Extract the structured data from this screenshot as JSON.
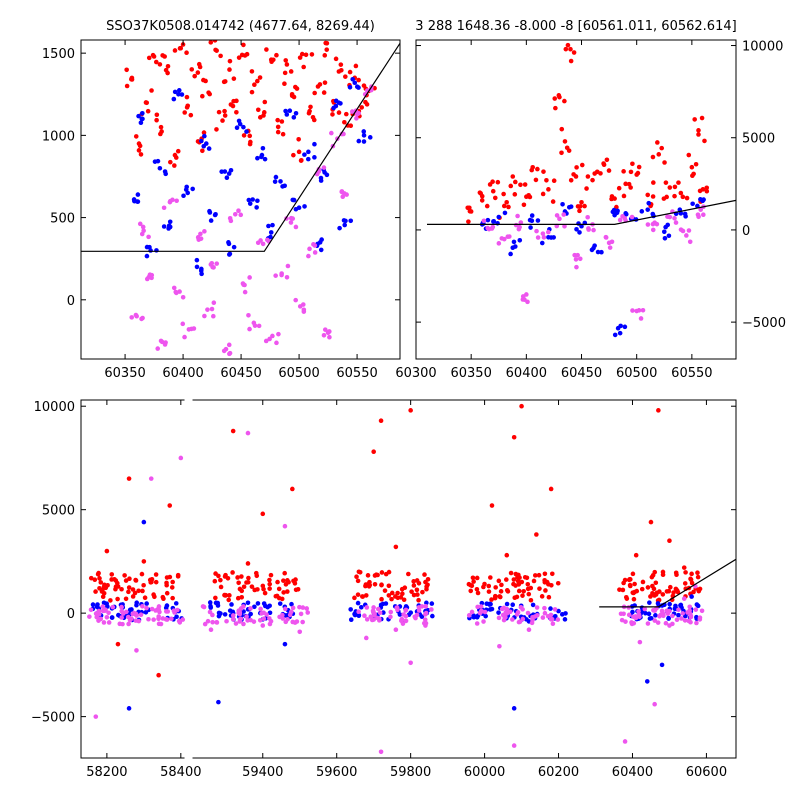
{
  "chart_data": [
    {
      "type": "scatter",
      "title": "SSO37K0508.014742 (4677.64, 8269.44)",
      "xlim": [
        60312,
        60587
      ],
      "ylim": [
        -360,
        1580
      ],
      "xticks": [
        60350,
        60400,
        60450,
        60500,
        60550
      ],
      "yticks": [
        0,
        500,
        1000,
        1500
      ],
      "grid": false,
      "series": [
        {
          "color": "#ff0000",
          "values": [
            [
              60356,
              1340
            ],
            [
              60362,
              950
            ],
            [
              60368,
              1200
            ],
            [
              60375,
              1480
            ],
            [
              60381,
              1050
            ],
            [
              60387,
              1420
            ],
            [
              60393,
              880
            ],
            [
              60398,
              1530
            ],
            [
              60404,
              1180
            ],
            [
              60410,
              1360
            ],
            [
              60416,
              980
            ],
            [
              60422,
              1260
            ],
            [
              60428,
              1520
            ],
            [
              60434,
              1090
            ],
            [
              60440,
              1400
            ],
            [
              60446,
              1210
            ],
            [
              60452,
              1550
            ],
            [
              60458,
              960
            ],
            [
              60464,
              1330
            ],
            [
              60470,
              1140
            ],
            [
              60476,
              1460
            ],
            [
              60482,
              1020
            ],
            [
              60488,
              1380
            ],
            [
              60494,
              1250
            ],
            [
              60500,
              900
            ],
            [
              60506,
              1490
            ],
            [
              60512,
              1110
            ],
            [
              60518,
              1310
            ],
            [
              60524,
              1560
            ],
            [
              60530,
              1200
            ],
            [
              60536,
              1430
            ],
            [
              60542,
              1060
            ],
            [
              60548,
              1350
            ],
            [
              60554,
              1170
            ],
            [
              60560,
              1270
            ]
          ]
        },
        {
          "color": "#0000ff",
          "values": [
            [
              60358,
              600
            ],
            [
              60365,
              1100
            ],
            [
              60372,
              300
            ],
            [
              60380,
              800
            ],
            [
              60388,
              450
            ],
            [
              60396,
              1250
            ],
            [
              60404,
              650
            ],
            [
              60412,
              200
            ],
            [
              60420,
              950
            ],
            [
              60428,
              520
            ],
            [
              60436,
              780
            ],
            [
              60444,
              320
            ],
            [
              60452,
              1050
            ],
            [
              60460,
              610
            ],
            [
              60468,
              880
            ],
            [
              60476,
              410
            ],
            [
              60484,
              720
            ],
            [
              60492,
              1150
            ],
            [
              60500,
              560
            ],
            [
              60508,
              900
            ],
            [
              60516,
              340
            ],
            [
              60524,
              760
            ],
            [
              60532,
              1210
            ],
            [
              60540,
              480
            ],
            [
              60548,
              1320
            ],
            [
              60556,
              1000
            ]
          ]
        },
        {
          "color": "#ee55ee",
          "values": [
            [
              60360,
              -100
            ],
            [
              60366,
              420
            ],
            [
              60373,
              150
            ],
            [
              60381,
              -250
            ],
            [
              60389,
              600
            ],
            [
              60397,
              50
            ],
            [
              60405,
              -180
            ],
            [
              60413,
              380
            ],
            [
              60421,
              -60
            ],
            [
              60429,
              220
            ],
            [
              60437,
              -300
            ],
            [
              60445,
              520
            ],
            [
              60453,
              90
            ],
            [
              60461,
              -140
            ],
            [
              60469,
              340
            ],
            [
              60477,
              -220
            ],
            [
              60485,
              160
            ],
            [
              60493,
              470
            ],
            [
              60501,
              -40
            ],
            [
              60509,
              310
            ],
            [
              60517,
              780
            ],
            [
              60525,
              -200
            ],
            [
              60533,
              980
            ],
            [
              60541,
              640
            ],
            [
              60549,
              1150
            ],
            [
              60557,
              1250
            ]
          ]
        }
      ],
      "model_line": [
        [
          60312,
          295
        ],
        [
          60470,
          295
        ],
        [
          60587,
          1560
        ]
      ]
    },
    {
      "type": "scatter",
      "title": "3 288 1648.36 -8.000 -8 [60561.011, 60562.614]",
      "xlim": [
        60300,
        60590
      ],
      "ylim": [
        -7000,
        10300
      ],
      "xticks": [
        60300,
        60350,
        60400,
        60450,
        60500,
        60550
      ],
      "yticks": [
        -5000,
        0,
        5000,
        10000
      ],
      "y_axis_side": "right",
      "grid": false,
      "series": [
        {
          "color": "#ff0000",
          "values": [
            [
              60350,
              1000
            ],
            [
              60360,
              1600
            ],
            [
              60370,
              2100
            ],
            [
              60380,
              1300
            ],
            [
              60390,
              2600
            ],
            [
              60400,
              1800
            ],
            [
              60410,
              3300
            ],
            [
              60420,
              2200
            ],
            [
              60430,
              7200
            ],
            [
              60435,
              4800
            ],
            [
              60440,
              9800
            ],
            [
              60445,
              2900
            ],
            [
              60450,
              1500
            ],
            [
              60460,
              2700
            ],
            [
              60470,
              3600
            ],
            [
              60480,
              1700
            ],
            [
              60490,
              2500
            ],
            [
              60500,
              3000
            ],
            [
              60510,
              1900
            ],
            [
              60520,
              4100
            ],
            [
              60530,
              2300
            ],
            [
              60540,
              2000
            ],
            [
              60550,
              3400
            ],
            [
              60556,
              5400
            ],
            [
              60560,
              2200
            ]
          ]
        },
        {
          "color": "#0000ff",
          "values": [
            [
              60360,
              300
            ],
            [
              60375,
              700
            ],
            [
              60390,
              -900
            ],
            [
              60405,
              500
            ],
            [
              60420,
              -400
            ],
            [
              60435,
              1000
            ],
            [
              60450,
              200
            ],
            [
              60465,
              -1200
            ],
            [
              60480,
              800
            ],
            [
              60485,
              -5600
            ],
            [
              60495,
              600
            ],
            [
              60510,
              1100
            ],
            [
              60525,
              -100
            ],
            [
              60540,
              900
            ],
            [
              60555,
              1300
            ]
          ]
        },
        {
          "color": "#ee55ee",
          "values": [
            [
              60365,
              100
            ],
            [
              60380,
              -500
            ],
            [
              60395,
              400
            ],
            [
              60400,
              -3500
            ],
            [
              60415,
              -200
            ],
            [
              60430,
              600
            ],
            [
              60445,
              -1600
            ],
            [
              60460,
              300
            ],
            [
              60475,
              -700
            ],
            [
              60490,
              500
            ],
            [
              60500,
              -4400
            ],
            [
              60515,
              0
            ],
            [
              60530,
              700
            ],
            [
              60545,
              -300
            ],
            [
              60558,
              1100
            ]
          ]
        }
      ],
      "model_line": [
        [
          60310,
          300
        ],
        [
          60480,
          300
        ],
        [
          60590,
          1600
        ]
      ]
    },
    {
      "type": "scatter",
      "title": "",
      "xlim": [
        58130,
        60680
      ],
      "ylim": [
        -7000,
        10300
      ],
      "xticks": [
        58200,
        58400,
        59400,
        59600,
        59800,
        60000,
        60200,
        60400,
        60600
      ],
      "yticks": [
        -5000,
        0,
        5000,
        10000
      ],
      "axis_breaks": [
        58410,
        59210
      ],
      "grid": false,
      "series": [
        {
          "color": "#ff0000",
          "values": [
            [
              58180,
              1200
            ],
            [
              58200,
              3000
            ],
            [
              58230,
              -1500
            ],
            [
              58260,
              6500
            ],
            [
              58300,
              2500
            ],
            [
              58340,
              -3000
            ],
            [
              58370,
              5200
            ],
            [
              59280,
              1800
            ],
            [
              59320,
              8800
            ],
            [
              59360,
              2400
            ],
            [
              59400,
              4800
            ],
            [
              59440,
              1500
            ],
            [
              59480,
              6000
            ],
            [
              59660,
              2000
            ],
            [
              59700,
              7800
            ],
            [
              59720,
              9300
            ],
            [
              59760,
              3200
            ],
            [
              59800,
              9800
            ],
            [
              59840,
              1500
            ],
            [
              59980,
              1700
            ],
            [
              60020,
              5200
            ],
            [
              60060,
              2800
            ],
            [
              60080,
              8500
            ],
            [
              60100,
              10000
            ],
            [
              60140,
              3800
            ],
            [
              60180,
              6000
            ],
            [
              60380,
              1600
            ],
            [
              60410,
              2800
            ],
            [
              60450,
              4400
            ],
            [
              60470,
              9800
            ],
            [
              60500,
              3500
            ],
            [
              60540,
              2200
            ],
            [
              60560,
              1900
            ]
          ]
        },
        {
          "color": "#0000ff",
          "values": [
            [
              58180,
              -200
            ],
            [
              58220,
              300
            ],
            [
              58260,
              -4600
            ],
            [
              58300,
              4400
            ],
            [
              58380,
              -300
            ],
            [
              59280,
              -4300
            ],
            [
              59320,
              0
            ],
            [
              59360,
              500
            ],
            [
              59400,
              -300
            ],
            [
              59460,
              -1500
            ],
            [
              59660,
              -100
            ],
            [
              59720,
              400
            ],
            [
              59780,
              -400
            ],
            [
              59840,
              100
            ],
            [
              59980,
              -200
            ],
            [
              60020,
              200
            ],
            [
              60080,
              -4600
            ],
            [
              60120,
              -400
            ],
            [
              60200,
              100
            ],
            [
              60400,
              -500
            ],
            [
              60440,
              -3300
            ],
            [
              60480,
              -2500
            ],
            [
              60520,
              200
            ],
            [
              60560,
              800
            ]
          ]
        },
        {
          "color": "#ee55ee",
          "values": [
            [
              58170,
              -5000
            ],
            [
              58200,
              -200
            ],
            [
              58240,
              100
            ],
            [
              58280,
              -1800
            ],
            [
              58320,
              6500
            ],
            [
              58360,
              -300
            ],
            [
              58400,
              7500
            ],
            [
              59260,
              -800
            ],
            [
              59320,
              -300
            ],
            [
              59360,
              8700
            ],
            [
              59400,
              -600
            ],
            [
              59460,
              4200
            ],
            [
              59500,
              -900
            ],
            [
              59680,
              -1200
            ],
            [
              59720,
              -6700
            ],
            [
              59760,
              -800
            ],
            [
              59800,
              -2400
            ],
            [
              59840,
              -600
            ],
            [
              59980,
              -500
            ],
            [
              60040,
              -1600
            ],
            [
              60080,
              -6400
            ],
            [
              60120,
              -800
            ],
            [
              60180,
              -300
            ],
            [
              60380,
              -6200
            ],
            [
              60420,
              -1400
            ],
            [
              60460,
              -4400
            ],
            [
              60500,
              -600
            ],
            [
              60540,
              700
            ],
            [
              60570,
              1300
            ]
          ]
        }
      ],
      "model_line": [
        [
          60310,
          300
        ],
        [
          60470,
          300
        ],
        [
          60680,
          2600
        ]
      ]
    }
  ]
}
